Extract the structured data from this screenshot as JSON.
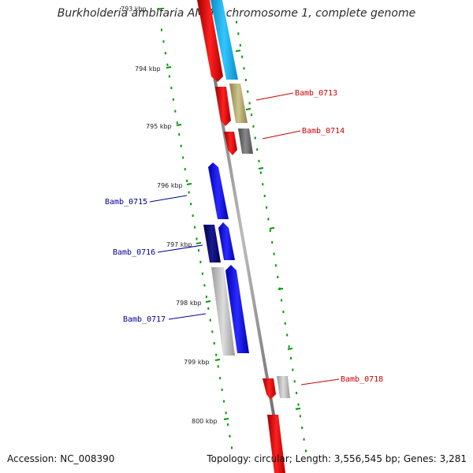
{
  "title": "Burkholderia ambifaria AMMD chromosome 1, complete genome",
  "footer": {
    "accession": "Accession: NC_008390",
    "summary": "Topology: circular; Length: 3,556,545 bp; Genes: 3,281"
  },
  "ticks": [
    "793 kbp",
    "794 kbp",
    "795 kbp",
    "796 kbp",
    "797 kbp",
    "798 kbp",
    "799 kbp",
    "800 kbp"
  ],
  "genes": [
    {
      "label": "Bamb_0713",
      "color": "#cc0000"
    },
    {
      "label": "Bamb_0714",
      "color": "#cc0000"
    },
    {
      "label": "Bamb_0715",
      "color": "#000099"
    },
    {
      "label": "Bamb_0716",
      "color": "#000099"
    },
    {
      "label": "Bamb_0717",
      "color": "#000099"
    },
    {
      "label": "Bamb_0718",
      "color": "#cc0000"
    }
  ]
}
